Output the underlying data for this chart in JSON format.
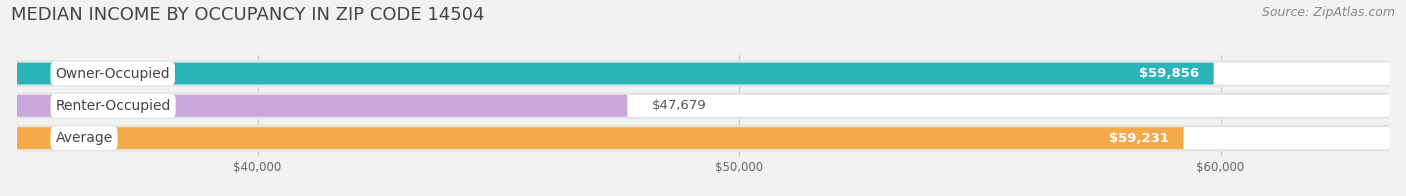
{
  "title": "MEDIAN INCOME BY OCCUPANCY IN ZIP CODE 14504",
  "source": "Source: ZipAtlas.com",
  "categories": [
    "Owner-Occupied",
    "Renter-Occupied",
    "Average"
  ],
  "values": [
    59856,
    47679,
    59231
  ],
  "bar_colors": [
    "#2bb5b8",
    "#c8a8d8",
    "#f5aa4a"
  ],
  "bar_labels": [
    "$59,856",
    "$47,679",
    "$59,231"
  ],
  "label_on_bar": [
    true,
    false,
    true
  ],
  "xlim_min": 35000,
  "xlim_max": 63500,
  "xticks": [
    40000,
    50000,
    60000
  ],
  "xtick_labels": [
    "$40,000",
    "$50,000",
    "$60,000"
  ],
  "background_color": "#f2f2f2",
  "bar_bg_color": "#e0e0e0",
  "row_bg_color": "#e8e8e8",
  "title_fontsize": 13,
  "source_fontsize": 9,
  "label_fontsize": 9.5,
  "category_fontsize": 10
}
